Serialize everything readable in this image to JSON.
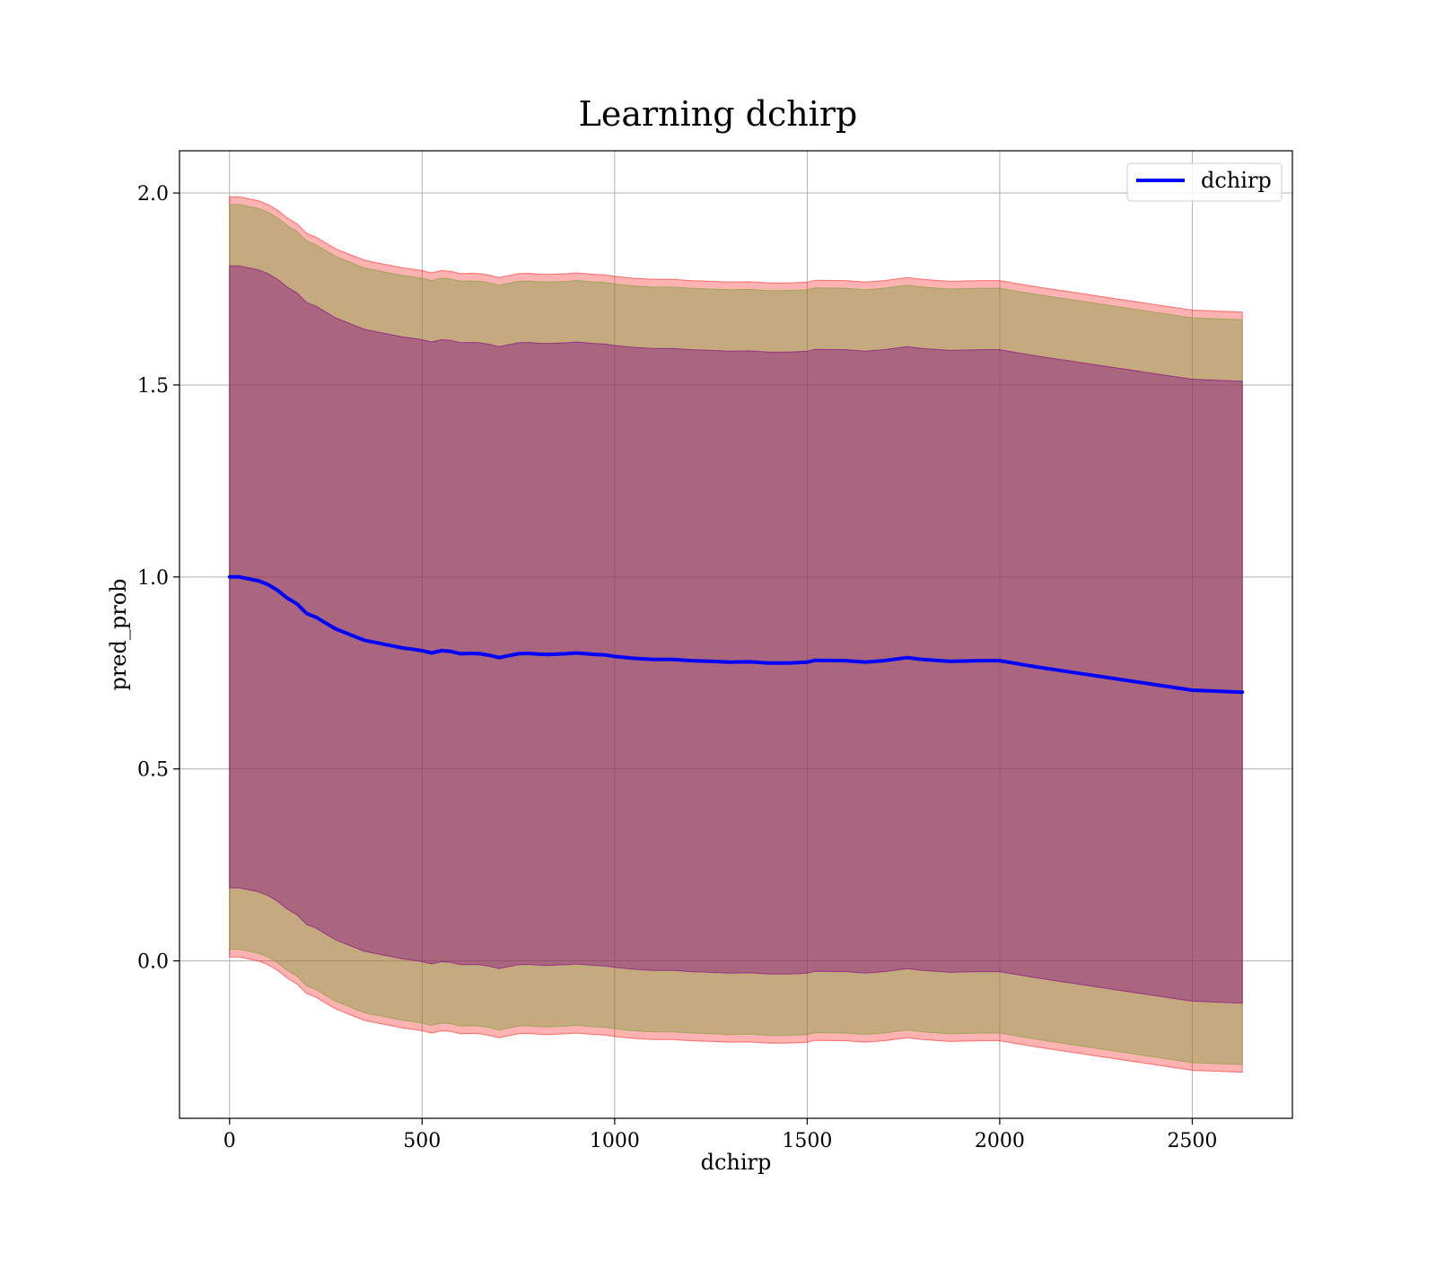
{
  "chart_data": {
    "type": "line",
    "title": "Learning dchirp",
    "xlabel": "dchirp",
    "ylabel": "pred_prob",
    "xlim": [
      -130,
      2760
    ],
    "ylim": [
      -0.41,
      2.11
    ],
    "xticks": [
      0,
      500,
      1000,
      1500,
      2000,
      2500
    ],
    "yticks": [
      0.0,
      0.5,
      1.0,
      1.5,
      2.0
    ],
    "xtick_labels": [
      "0",
      "500",
      "1000",
      "1500",
      "2000",
      "2500"
    ],
    "ytick_labels": [
      "0.0",
      "0.5",
      "1.0",
      "1.5",
      "2.0"
    ],
    "grid": true,
    "legend": {
      "location": "upper right",
      "entries": [
        "dchirp"
      ]
    },
    "series": [
      {
        "name": "dchirp",
        "color": "#0000ff",
        "x": [
          0,
          25,
          50,
          75,
          100,
          125,
          150,
          175,
          200,
          225,
          250,
          275,
          300,
          325,
          350,
          375,
          400,
          425,
          450,
          475,
          500,
          525,
          550,
          575,
          600,
          625,
          650,
          675,
          700,
          725,
          750,
          775,
          800,
          825,
          850,
          875,
          900,
          925,
          950,
          975,
          1000,
          1050,
          1100,
          1150,
          1200,
          1250,
          1300,
          1350,
          1400,
          1450,
          1500,
          1520,
          1600,
          1650,
          1700,
          1760,
          1800,
          1870,
          1950,
          2000,
          2100,
          2200,
          2300,
          2400,
          2500,
          2630
        ],
        "y": [
          1.0,
          1.0,
          0.995,
          0.99,
          0.98,
          0.965,
          0.945,
          0.93,
          0.905,
          0.895,
          0.88,
          0.865,
          0.855,
          0.845,
          0.835,
          0.83,
          0.825,
          0.82,
          0.815,
          0.812,
          0.808,
          0.802,
          0.808,
          0.806,
          0.8,
          0.801,
          0.8,
          0.796,
          0.79,
          0.795,
          0.8,
          0.801,
          0.799,
          0.798,
          0.799,
          0.8,
          0.802,
          0.8,
          0.798,
          0.797,
          0.793,
          0.788,
          0.785,
          0.785,
          0.782,
          0.78,
          0.778,
          0.779,
          0.776,
          0.776,
          0.778,
          0.783,
          0.782,
          0.778,
          0.782,
          0.79,
          0.785,
          0.78,
          0.782,
          0.782,
          0.765,
          0.75,
          0.735,
          0.72,
          0.705,
          0.7
        ]
      }
    ],
    "bands": [
      {
        "color": "#ff0000",
        "opacity": 0.3,
        "description_offset": 0.99
      },
      {
        "color": "#80a040",
        "opacity": 0.45,
        "description_offset": 0.97
      },
      {
        "color": "#800080",
        "opacity": 0.4,
        "description_offset": 0.81
      }
    ]
  }
}
